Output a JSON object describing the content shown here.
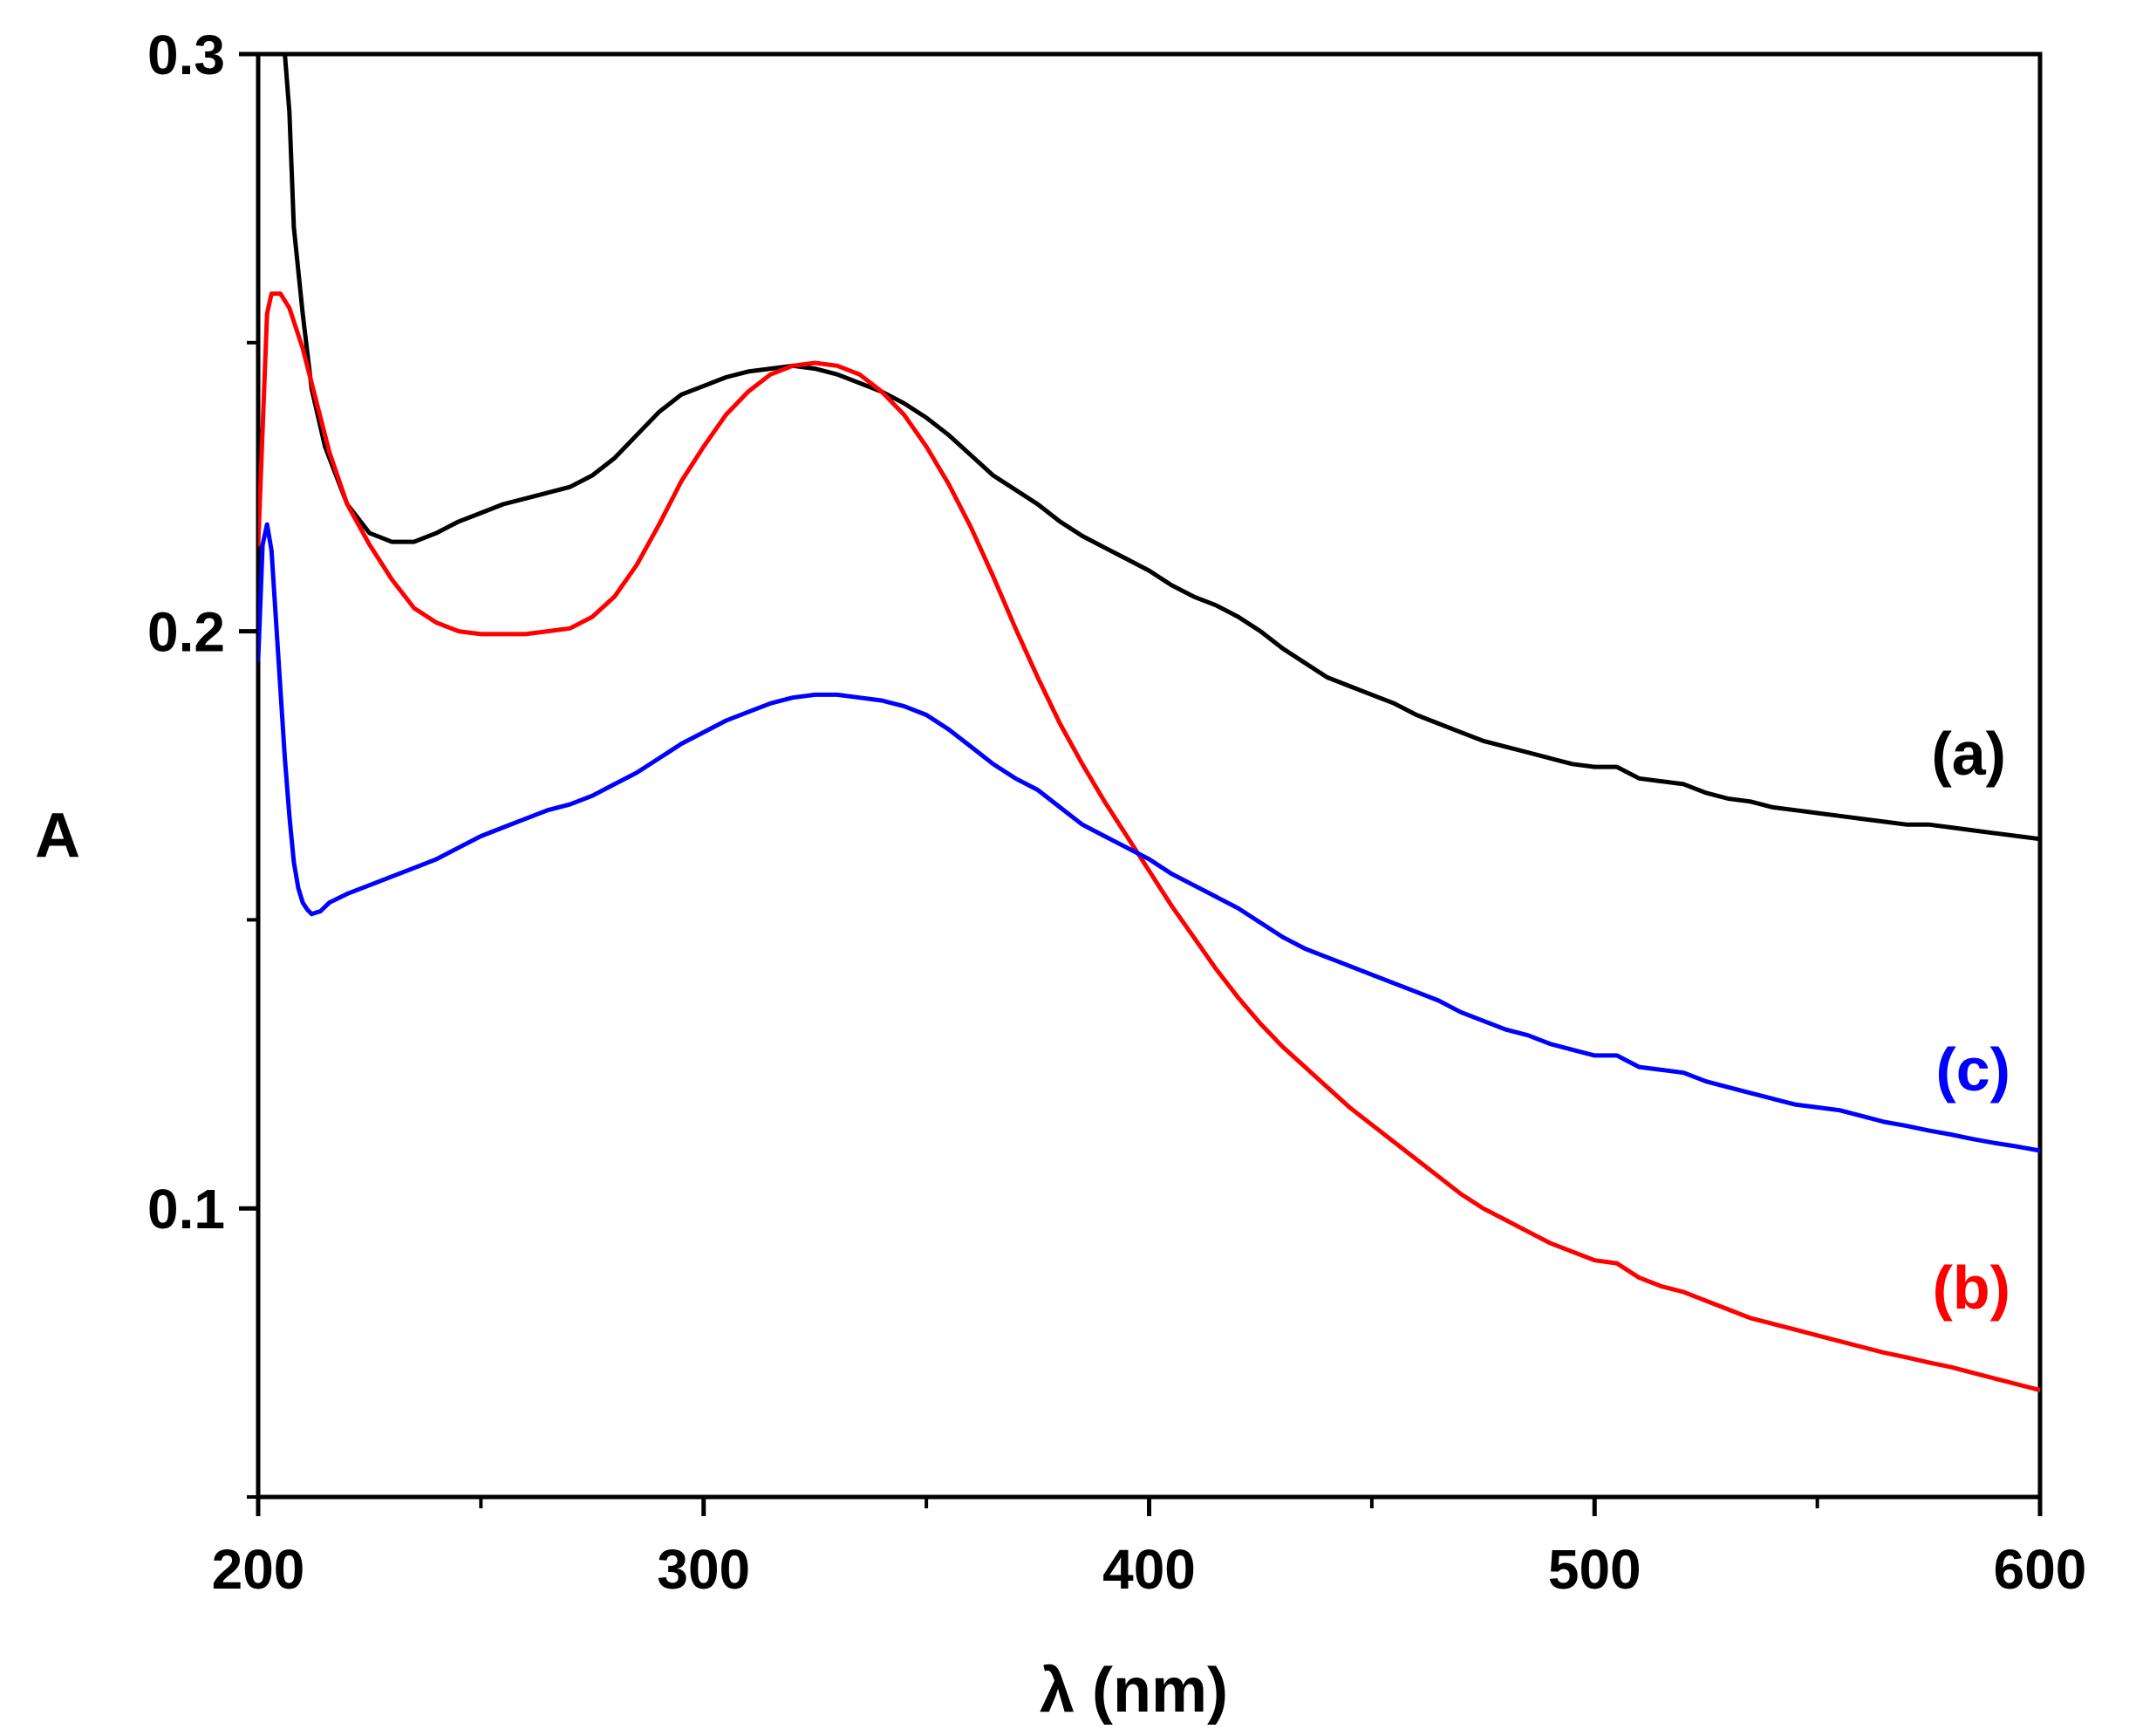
{
  "chart_data": {
    "type": "line",
    "title": "",
    "xlabel": "λ (nm)",
    "ylabel": "A",
    "xlim": [
      200,
      600
    ],
    "ylim": [
      0.05,
      0.3
    ],
    "x_ticks": [
      200,
      300,
      400,
      500,
      600
    ],
    "x_tick_labels": [
      "200",
      "300",
      "400",
      "500",
      "600"
    ],
    "x_minor_ticks": [
      250,
      350,
      450,
      550
    ],
    "y_ticks": [
      0.1,
      0.2,
      0.3
    ],
    "y_tick_labels": [
      "0.1",
      "0.2",
      "0.3"
    ],
    "y_minor_ticks": [
      0.05,
      0.15,
      0.25
    ],
    "grid": false,
    "series": [
      {
        "name": "(a)",
        "color": "#000000",
        "points": [
          [
            206,
            0.3
          ],
          [
            207,
            0.29
          ],
          [
            208,
            0.27
          ],
          [
            210,
            0.255
          ],
          [
            212,
            0.242
          ],
          [
            215,
            0.232
          ],
          [
            220,
            0.222
          ],
          [
            225,
            0.217
          ],
          [
            230,
            0.2155
          ],
          [
            235,
            0.2155
          ],
          [
            240,
            0.217
          ],
          [
            245,
            0.219
          ],
          [
            250,
            0.2205
          ],
          [
            255,
            0.222
          ],
          [
            260,
            0.223
          ],
          [
            265,
            0.224
          ],
          [
            270,
            0.225
          ],
          [
            275,
            0.227
          ],
          [
            280,
            0.23
          ],
          [
            285,
            0.234
          ],
          [
            290,
            0.238
          ],
          [
            295,
            0.241
          ],
          [
            300,
            0.2425
          ],
          [
            305,
            0.244
          ],
          [
            310,
            0.245
          ],
          [
            315,
            0.2455
          ],
          [
            320,
            0.246
          ],
          [
            325,
            0.2455
          ],
          [
            330,
            0.2445
          ],
          [
            335,
            0.243
          ],
          [
            340,
            0.2415
          ],
          [
            345,
            0.2395
          ],
          [
            350,
            0.237
          ],
          [
            355,
            0.234
          ],
          [
            360,
            0.2305
          ],
          [
            365,
            0.227
          ],
          [
            370,
            0.2245
          ],
          [
            375,
            0.222
          ],
          [
            380,
            0.219
          ],
          [
            385,
            0.2165
          ],
          [
            390,
            0.2145
          ],
          [
            395,
            0.2125
          ],
          [
            400,
            0.2105
          ],
          [
            405,
            0.208
          ],
          [
            410,
            0.206
          ],
          [
            415,
            0.2045
          ],
          [
            420,
            0.2025
          ],
          [
            425,
            0.2
          ],
          [
            430,
            0.197
          ],
          [
            435,
            0.1945
          ],
          [
            440,
            0.192
          ],
          [
            445,
            0.1905
          ],
          [
            450,
            0.189
          ],
          [
            455,
            0.1875
          ],
          [
            460,
            0.1855
          ],
          [
            465,
            0.184
          ],
          [
            470,
            0.1825
          ],
          [
            475,
            0.181
          ],
          [
            480,
            0.18
          ],
          [
            485,
            0.179
          ],
          [
            490,
            0.178
          ],
          [
            495,
            0.177
          ],
          [
            500,
            0.1765
          ],
          [
            505,
            0.1765
          ],
          [
            510,
            0.1745
          ],
          [
            515,
            0.174
          ],
          [
            520,
            0.1735
          ],
          [
            525,
            0.172
          ],
          [
            530,
            0.171
          ],
          [
            535,
            0.1705
          ],
          [
            540,
            0.1695
          ],
          [
            545,
            0.169
          ],
          [
            550,
            0.1685
          ],
          [
            555,
            0.168
          ],
          [
            560,
            0.1675
          ],
          [
            565,
            0.167
          ],
          [
            570,
            0.1665
          ],
          [
            575,
            0.1665
          ],
          [
            580,
            0.166
          ],
          [
            585,
            0.1655
          ],
          [
            590,
            0.165
          ],
          [
            595,
            0.1645
          ],
          [
            600,
            0.164
          ]
        ]
      },
      {
        "name": "(b)",
        "color": "#ff0000",
        "points": [
          [
            200,
            0.215
          ],
          [
            201,
            0.235
          ],
          [
            202,
            0.255
          ],
          [
            203,
            0.2585
          ],
          [
            205,
            0.2585
          ],
          [
            207,
            0.256
          ],
          [
            210,
            0.249
          ],
          [
            213,
            0.24
          ],
          [
            216,
            0.231
          ],
          [
            220,
            0.222
          ],
          [
            225,
            0.215
          ],
          [
            230,
            0.209
          ],
          [
            235,
            0.204
          ],
          [
            240,
            0.2015
          ],
          [
            245,
            0.2
          ],
          [
            250,
            0.1995
          ],
          [
            255,
            0.1995
          ],
          [
            260,
            0.1995
          ],
          [
            265,
            0.2
          ],
          [
            270,
            0.2005
          ],
          [
            275,
            0.2025
          ],
          [
            280,
            0.206
          ],
          [
            285,
            0.2115
          ],
          [
            290,
            0.2185
          ],
          [
            295,
            0.226
          ],
          [
            300,
            0.232
          ],
          [
            305,
            0.2375
          ],
          [
            310,
            0.2415
          ],
          [
            315,
            0.2445
          ],
          [
            320,
            0.246
          ],
          [
            325,
            0.2465
          ],
          [
            330,
            0.246
          ],
          [
            335,
            0.2445
          ],
          [
            340,
            0.2415
          ],
          [
            345,
            0.2375
          ],
          [
            350,
            0.232
          ],
          [
            355,
            0.2255
          ],
          [
            360,
            0.218
          ],
          [
            365,
            0.2095
          ],
          [
            370,
            0.2005
          ],
          [
            375,
            0.192
          ],
          [
            380,
            0.184
          ],
          [
            385,
            0.177
          ],
          [
            390,
            0.1705
          ],
          [
            395,
            0.1645
          ],
          [
            400,
            0.1585
          ],
          [
            405,
            0.1525
          ],
          [
            410,
            0.147
          ],
          [
            415,
            0.1415
          ],
          [
            420,
            0.1365
          ],
          [
            425,
            0.132
          ],
          [
            430,
            0.128
          ],
          [
            435,
            0.1245
          ],
          [
            440,
            0.121
          ],
          [
            445,
            0.1175
          ],
          [
            450,
            0.1145
          ],
          [
            455,
            0.1115
          ],
          [
            460,
            0.1085
          ],
          [
            465,
            0.1055
          ],
          [
            470,
            0.1025
          ],
          [
            475,
            0.1
          ],
          [
            480,
            0.098
          ],
          [
            485,
            0.096
          ],
          [
            490,
            0.094
          ],
          [
            495,
            0.0925
          ],
          [
            500,
            0.091
          ],
          [
            505,
            0.0905
          ],
          [
            510,
            0.088
          ],
          [
            515,
            0.0865
          ],
          [
            520,
            0.0855
          ],
          [
            525,
            0.084
          ],
          [
            530,
            0.0825
          ],
          [
            535,
            0.081
          ],
          [
            540,
            0.08
          ],
          [
            545,
            0.079
          ],
          [
            550,
            0.078
          ],
          [
            555,
            0.077
          ],
          [
            560,
            0.076
          ],
          [
            565,
            0.075
          ],
          [
            570,
            0.0742
          ],
          [
            575,
            0.0733
          ],
          [
            580,
            0.0725
          ],
          [
            585,
            0.0715
          ],
          [
            590,
            0.0705
          ],
          [
            595,
            0.0695
          ],
          [
            600,
            0.0685
          ]
        ]
      },
      {
        "name": "(c)",
        "color": "#0000ff",
        "points": [
          [
            200,
            0.195
          ],
          [
            201,
            0.215
          ],
          [
            202,
            0.2185
          ],
          [
            203,
            0.214
          ],
          [
            204,
            0.202
          ],
          [
            205,
            0.19
          ],
          [
            206,
            0.178
          ],
          [
            207,
            0.168
          ],
          [
            208,
            0.16
          ],
          [
            209,
            0.1555
          ],
          [
            210,
            0.153
          ],
          [
            211,
            0.1518
          ],
          [
            212,
            0.151
          ],
          [
            214,
            0.1515
          ],
          [
            216,
            0.153
          ],
          [
            220,
            0.1545
          ],
          [
            225,
            0.156
          ],
          [
            230,
            0.1575
          ],
          [
            235,
            0.159
          ],
          [
            240,
            0.1605
          ],
          [
            245,
            0.1625
          ],
          [
            250,
            0.1645
          ],
          [
            255,
            0.166
          ],
          [
            260,
            0.1675
          ],
          [
            265,
            0.169
          ],
          [
            270,
            0.17
          ],
          [
            275,
            0.1715
          ],
          [
            280,
            0.1735
          ],
          [
            285,
            0.1755
          ],
          [
            290,
            0.178
          ],
          [
            295,
            0.1805
          ],
          [
            300,
            0.1825
          ],
          [
            305,
            0.1845
          ],
          [
            310,
            0.186
          ],
          [
            315,
            0.1875
          ],
          [
            320,
            0.1885
          ],
          [
            325,
            0.189
          ],
          [
            330,
            0.189
          ],
          [
            335,
            0.1885
          ],
          [
            340,
            0.188
          ],
          [
            345,
            0.187
          ],
          [
            350,
            0.1855
          ],
          [
            355,
            0.183
          ],
          [
            360,
            0.18
          ],
          [
            365,
            0.177
          ],
          [
            370,
            0.1745
          ],
          [
            375,
            0.1725
          ],
          [
            380,
            0.1695
          ],
          [
            385,
            0.1665
          ],
          [
            390,
            0.1645
          ],
          [
            395,
            0.1625
          ],
          [
            400,
            0.1605
          ],
          [
            405,
            0.158
          ],
          [
            410,
            0.156
          ],
          [
            415,
            0.154
          ],
          [
            420,
            0.152
          ],
          [
            425,
            0.1495
          ],
          [
            430,
            0.147
          ],
          [
            435,
            0.145
          ],
          [
            440,
            0.1435
          ],
          [
            445,
            0.142
          ],
          [
            450,
            0.1405
          ],
          [
            455,
            0.139
          ],
          [
            460,
            0.1375
          ],
          [
            465,
            0.136
          ],
          [
            470,
            0.134
          ],
          [
            475,
            0.1325
          ],
          [
            480,
            0.131
          ],
          [
            485,
            0.13
          ],
          [
            490,
            0.1285
          ],
          [
            495,
            0.1275
          ],
          [
            500,
            0.1265
          ],
          [
            505,
            0.1265
          ],
          [
            510,
            0.1245
          ],
          [
            515,
            0.124
          ],
          [
            520,
            0.1235
          ],
          [
            525,
            0.122
          ],
          [
            530,
            0.121
          ],
          [
            535,
            0.12
          ],
          [
            540,
            0.119
          ],
          [
            545,
            0.118
          ],
          [
            550,
            0.1175
          ],
          [
            555,
            0.117
          ],
          [
            560,
            0.116
          ],
          [
            565,
            0.115
          ],
          [
            570,
            0.1143
          ],
          [
            575,
            0.1135
          ],
          [
            580,
            0.1128
          ],
          [
            585,
            0.112
          ],
          [
            590,
            0.1113
          ],
          [
            595,
            0.1107
          ],
          [
            600,
            0.11
          ]
        ]
      }
    ],
    "series_labels": [
      {
        "text": "(a)",
        "color": "#000000"
      },
      {
        "text": "(b)",
        "color": "#ff0000"
      },
      {
        "text": "(c)",
        "color": "#0000ff"
      }
    ]
  }
}
